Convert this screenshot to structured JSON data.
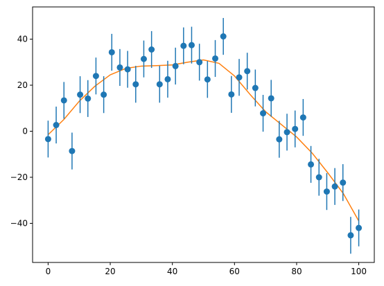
{
  "chart_data": {
    "type": "scatter",
    "title": "",
    "xlabel": "",
    "ylabel": "",
    "xlim": [
      -5,
      105
    ],
    "ylim": [
      -57,
      54
    ],
    "grid": false,
    "x_ticks": [
      0,
      20,
      40,
      60,
      80,
      100
    ],
    "y_ticks": [
      -40,
      -20,
      0,
      20,
      40
    ],
    "x_tick_labels": [
      "0",
      "20",
      "40",
      "60",
      "80",
      "100"
    ],
    "y_tick_labels": [
      "−40",
      "−20",
      "0",
      "20",
      "40"
    ],
    "colors": {
      "points": "#1f77b4",
      "fit": "#ff7f0e",
      "axes": "#000000"
    },
    "series": [
      {
        "kind": "errorbar",
        "error": 8,
        "points": [
          [
            0.0,
            -3.4
          ],
          [
            2.6,
            2.7
          ],
          [
            5.1,
            13.4
          ],
          [
            7.7,
            -8.6
          ],
          [
            10.3,
            15.9
          ],
          [
            12.8,
            14.2
          ],
          [
            15.4,
            24.0
          ],
          [
            17.9,
            15.9
          ],
          [
            20.5,
            34.3
          ],
          [
            23.1,
            27.7
          ],
          [
            25.6,
            26.9
          ],
          [
            28.2,
            20.4
          ],
          [
            30.8,
            31.4
          ],
          [
            33.3,
            35.5
          ],
          [
            35.9,
            20.4
          ],
          [
            38.5,
            22.6
          ],
          [
            41.0,
            28.3
          ],
          [
            43.6,
            37.1
          ],
          [
            46.2,
            37.4
          ],
          [
            48.7,
            30.0
          ],
          [
            51.3,
            22.5
          ],
          [
            53.8,
            31.6
          ],
          [
            56.4,
            41.2
          ],
          [
            59.0,
            16.0
          ],
          [
            61.5,
            23.4
          ],
          [
            64.1,
            26.1
          ],
          [
            66.7,
            18.8
          ],
          [
            69.2,
            7.8
          ],
          [
            71.8,
            14.3
          ],
          [
            74.4,
            -3.5
          ],
          [
            76.9,
            -0.4
          ],
          [
            79.5,
            1.0
          ],
          [
            82.1,
            6.0
          ],
          [
            84.6,
            -14.4
          ],
          [
            87.2,
            -20.0
          ],
          [
            89.7,
            -26.2
          ],
          [
            92.3,
            -24.0
          ],
          [
            94.9,
            -22.3
          ],
          [
            97.4,
            -45.2
          ],
          [
            100.0,
            -42.0
          ]
        ]
      },
      {
        "kind": "line",
        "points": [
          [
            0,
            -1.5
          ],
          [
            5,
            5.0
          ],
          [
            10,
            13.0
          ],
          [
            15,
            19.5
          ],
          [
            20,
            24.5
          ],
          [
            25,
            27.3
          ],
          [
            30,
            28.3
          ],
          [
            35,
            28.5
          ],
          [
            40,
            28.8
          ],
          [
            45,
            30.0
          ],
          [
            50,
            31.0
          ],
          [
            55,
            29.5
          ],
          [
            60,
            24.0
          ],
          [
            65,
            16.0
          ],
          [
            70,
            8.5
          ],
          [
            75,
            3.0
          ],
          [
            80,
            -2.5
          ],
          [
            85,
            -9.5
          ],
          [
            90,
            -18.0
          ],
          [
            95,
            -27.0
          ],
          [
            100,
            -39.0
          ]
        ]
      }
    ]
  }
}
